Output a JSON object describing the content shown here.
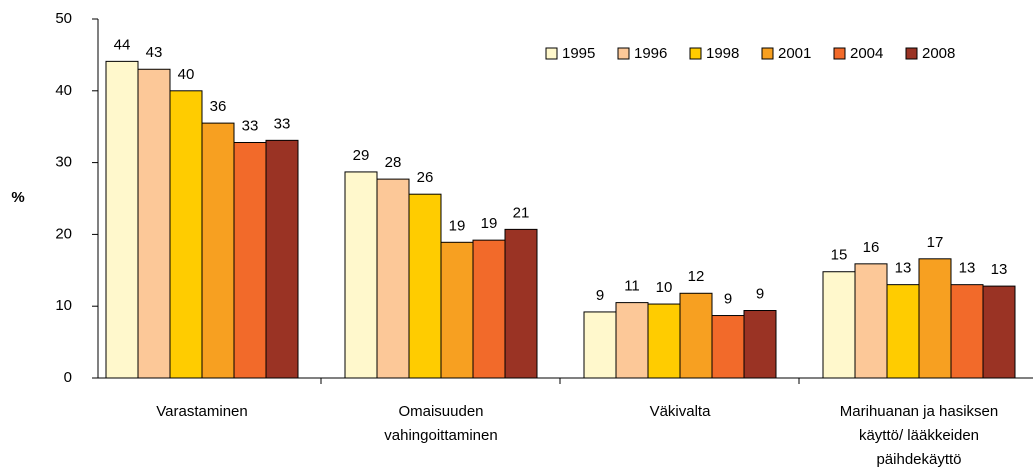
{
  "chart_data": {
    "type": "bar",
    "y_label": "%",
    "categories": [
      [
        "Varastaminen"
      ],
      [
        "Omaisuuden",
        "vahingoittaminen"
      ],
      [
        "Väkivalta"
      ],
      [
        "Marihuanan ja hasiksen",
        "käyttö/ lääkkeiden",
        "päihdekäyttö"
      ]
    ],
    "series": [
      {
        "name": "1995",
        "color": "#fff8cc",
        "values": [
          44.1,
          28.7,
          9.2,
          14.8
        ],
        "value_labels": [
          "44",
          "29",
          "9",
          "15"
        ]
      },
      {
        "name": "1996",
        "color": "#fcc898",
        "values": [
          43.0,
          27.7,
          10.5,
          15.9
        ],
        "value_labels": [
          "43",
          "28",
          "11",
          "16"
        ]
      },
      {
        "name": "1998",
        "color": "#ffcc00",
        "values": [
          40.0,
          25.6,
          10.3,
          13.0
        ],
        "value_labels": [
          "40",
          "26",
          "10",
          "13"
        ]
      },
      {
        "name": "2001",
        "color": "#f7a021",
        "values": [
          35.5,
          18.9,
          11.8,
          16.6
        ],
        "value_labels": [
          "36",
          "19",
          "12",
          "17"
        ]
      },
      {
        "name": "2004",
        "color": "#f26a2a",
        "values": [
          32.8,
          19.2,
          8.7,
          13.0
        ],
        "value_labels": [
          "33",
          "19",
          "9",
          "13"
        ]
      },
      {
        "name": "2008",
        "color": "#9a3324",
        "values": [
          33.1,
          20.7,
          9.4,
          12.8
        ],
        "value_labels": [
          "33",
          "21",
          "9",
          "13"
        ]
      }
    ],
    "ylim": [
      0,
      50
    ],
    "yticks": [
      0,
      10,
      20,
      30,
      40,
      50
    ],
    "grid": false,
    "legend": "top-right"
  }
}
